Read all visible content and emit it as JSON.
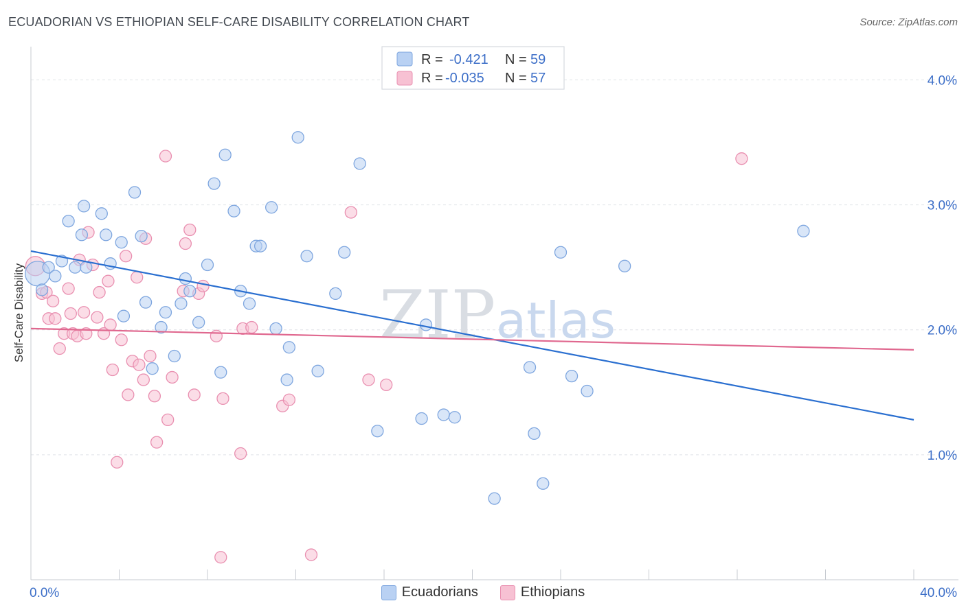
{
  "header": {
    "title": "ECUADORIAN VS ETHIOPIAN SELF-CARE DISABILITY CORRELATION CHART",
    "source": "Source: ZipAtlas.com"
  },
  "watermark": {
    "zip": "ZIP",
    "atlas": "atlas"
  },
  "colors": {
    "blue_fill": "#b9d1f3",
    "blue_stroke": "#7ea6df",
    "blue_line": "#2a6fd0",
    "pink_fill": "#f7c1d3",
    "pink_stroke": "#e98fb0",
    "pink_line": "#e0688f",
    "grid": "#dfe2e7",
    "axis_text": "#3d6fc8"
  },
  "chart_data": {
    "type": "scatter",
    "title": "ECUADORIAN VS ETHIOPIAN SELF-CARE DISABILITY CORRELATION CHART",
    "xlabel": "",
    "ylabel": "Self-Care Disability",
    "xlim": [
      0,
      40
    ],
    "ylim": [
      0,
      4.2
    ],
    "x_tick_labels": [
      "0.0%",
      "40.0%"
    ],
    "y_ticks": [
      1.0,
      2.0,
      3.0,
      4.0
    ],
    "y_tick_labels": [
      "1.0%",
      "2.0%",
      "3.0%",
      "4.0%"
    ],
    "grid": "horizontal dashed",
    "legend_position": "top-center",
    "legend": [
      {
        "name": "Ecuadorians",
        "r_label": "R =",
        "r": "-0.421",
        "n_label": "N =",
        "n": "59"
      },
      {
        "name": "Ethiopians",
        "r_label": "R =",
        "r": "-0.035",
        "n_label": "N =",
        "n": "57"
      }
    ],
    "series": [
      {
        "name": "Ecuadorians",
        "trend": {
          "x": [
            0,
            40
          ],
          "y": [
            2.63,
            1.28
          ]
        },
        "points": [
          [
            0.3,
            2.45
          ],
          [
            0.5,
            2.32
          ],
          [
            0.8,
            2.5
          ],
          [
            1.1,
            2.43
          ],
          [
            1.4,
            2.55
          ],
          [
            1.7,
            2.87
          ],
          [
            2.0,
            2.5
          ],
          [
            2.3,
            2.76
          ],
          [
            2.4,
            2.99
          ],
          [
            2.5,
            2.5
          ],
          [
            3.2,
            2.93
          ],
          [
            3.4,
            2.76
          ],
          [
            3.6,
            2.53
          ],
          [
            4.1,
            2.7
          ],
          [
            4.2,
            2.11
          ],
          [
            4.7,
            3.1
          ],
          [
            5.0,
            2.75
          ],
          [
            5.2,
            2.22
          ],
          [
            5.5,
            1.69
          ],
          [
            5.9,
            2.02
          ],
          [
            6.1,
            2.14
          ],
          [
            6.5,
            1.79
          ],
          [
            6.8,
            2.21
          ],
          [
            7.0,
            2.41
          ],
          [
            7.2,
            2.31
          ],
          [
            7.6,
            2.06
          ],
          [
            8.0,
            2.52
          ],
          [
            8.3,
            3.17
          ],
          [
            8.6,
            1.66
          ],
          [
            8.8,
            3.4
          ],
          [
            9.2,
            2.95
          ],
          [
            9.5,
            2.31
          ],
          [
            9.9,
            2.21
          ],
          [
            10.2,
            2.67
          ],
          [
            10.4,
            2.67
          ],
          [
            10.9,
            2.98
          ],
          [
            11.1,
            2.01
          ],
          [
            11.7,
            1.86
          ],
          [
            11.6,
            1.6
          ],
          [
            12.1,
            3.54
          ],
          [
            12.5,
            2.59
          ],
          [
            13.0,
            1.67
          ],
          [
            13.8,
            2.29
          ],
          [
            14.2,
            2.62
          ],
          [
            14.9,
            3.33
          ],
          [
            15.7,
            1.19
          ],
          [
            17.9,
            2.04
          ],
          [
            17.7,
            1.29
          ],
          [
            18.7,
            1.32
          ],
          [
            19.2,
            1.3
          ],
          [
            21.0,
            0.65
          ],
          [
            22.6,
            1.7
          ],
          [
            22.8,
            1.17
          ],
          [
            23.2,
            0.77
          ],
          [
            24.0,
            2.62
          ],
          [
            24.5,
            1.63
          ],
          [
            25.2,
            1.51
          ],
          [
            26.9,
            2.51
          ],
          [
            35.0,
            2.79
          ]
        ]
      },
      {
        "name": "Ethiopians",
        "trend": {
          "x": [
            0,
            40
          ],
          "y": [
            2.01,
            1.84
          ]
        },
        "points": [
          [
            0.2,
            2.51
          ],
          [
            0.5,
            2.29
          ],
          [
            0.7,
            2.3
          ],
          [
            0.8,
            2.09
          ],
          [
            1.0,
            2.23
          ],
          [
            1.1,
            2.09
          ],
          [
            1.3,
            1.85
          ],
          [
            1.5,
            1.97
          ],
          [
            1.7,
            2.33
          ],
          [
            1.8,
            2.13
          ],
          [
            1.9,
            1.97
          ],
          [
            2.1,
            1.95
          ],
          [
            2.2,
            2.56
          ],
          [
            2.4,
            2.14
          ],
          [
            2.5,
            1.97
          ],
          [
            2.6,
            2.78
          ],
          [
            2.8,
            2.52
          ],
          [
            3.0,
            2.1
          ],
          [
            3.1,
            2.3
          ],
          [
            3.3,
            1.97
          ],
          [
            3.5,
            2.39
          ],
          [
            3.6,
            2.04
          ],
          [
            3.7,
            1.68
          ],
          [
            3.9,
            0.94
          ],
          [
            4.1,
            1.92
          ],
          [
            4.3,
            2.59
          ],
          [
            4.4,
            1.48
          ],
          [
            4.6,
            1.75
          ],
          [
            4.8,
            2.42
          ],
          [
            4.9,
            1.72
          ],
          [
            5.1,
            1.6
          ],
          [
            5.2,
            2.73
          ],
          [
            5.4,
            1.79
          ],
          [
            5.6,
            1.47
          ],
          [
            5.7,
            1.1
          ],
          [
            6.1,
            3.39
          ],
          [
            6.2,
            1.28
          ],
          [
            6.4,
            1.62
          ],
          [
            6.9,
            2.31
          ],
          [
            7.0,
            2.69
          ],
          [
            7.2,
            2.8
          ],
          [
            7.4,
            1.48
          ],
          [
            7.6,
            2.29
          ],
          [
            7.8,
            2.35
          ],
          [
            8.4,
            1.95
          ],
          [
            8.6,
            0.18
          ],
          [
            8.7,
            1.45
          ],
          [
            9.5,
            1.01
          ],
          [
            9.6,
            2.01
          ],
          [
            10.0,
            2.02
          ],
          [
            11.4,
            1.39
          ],
          [
            11.7,
            1.44
          ],
          [
            12.7,
            0.2
          ],
          [
            14.5,
            2.94
          ],
          [
            15.3,
            1.6
          ],
          [
            16.1,
            1.56
          ],
          [
            32.2,
            3.37
          ]
        ]
      }
    ]
  }
}
